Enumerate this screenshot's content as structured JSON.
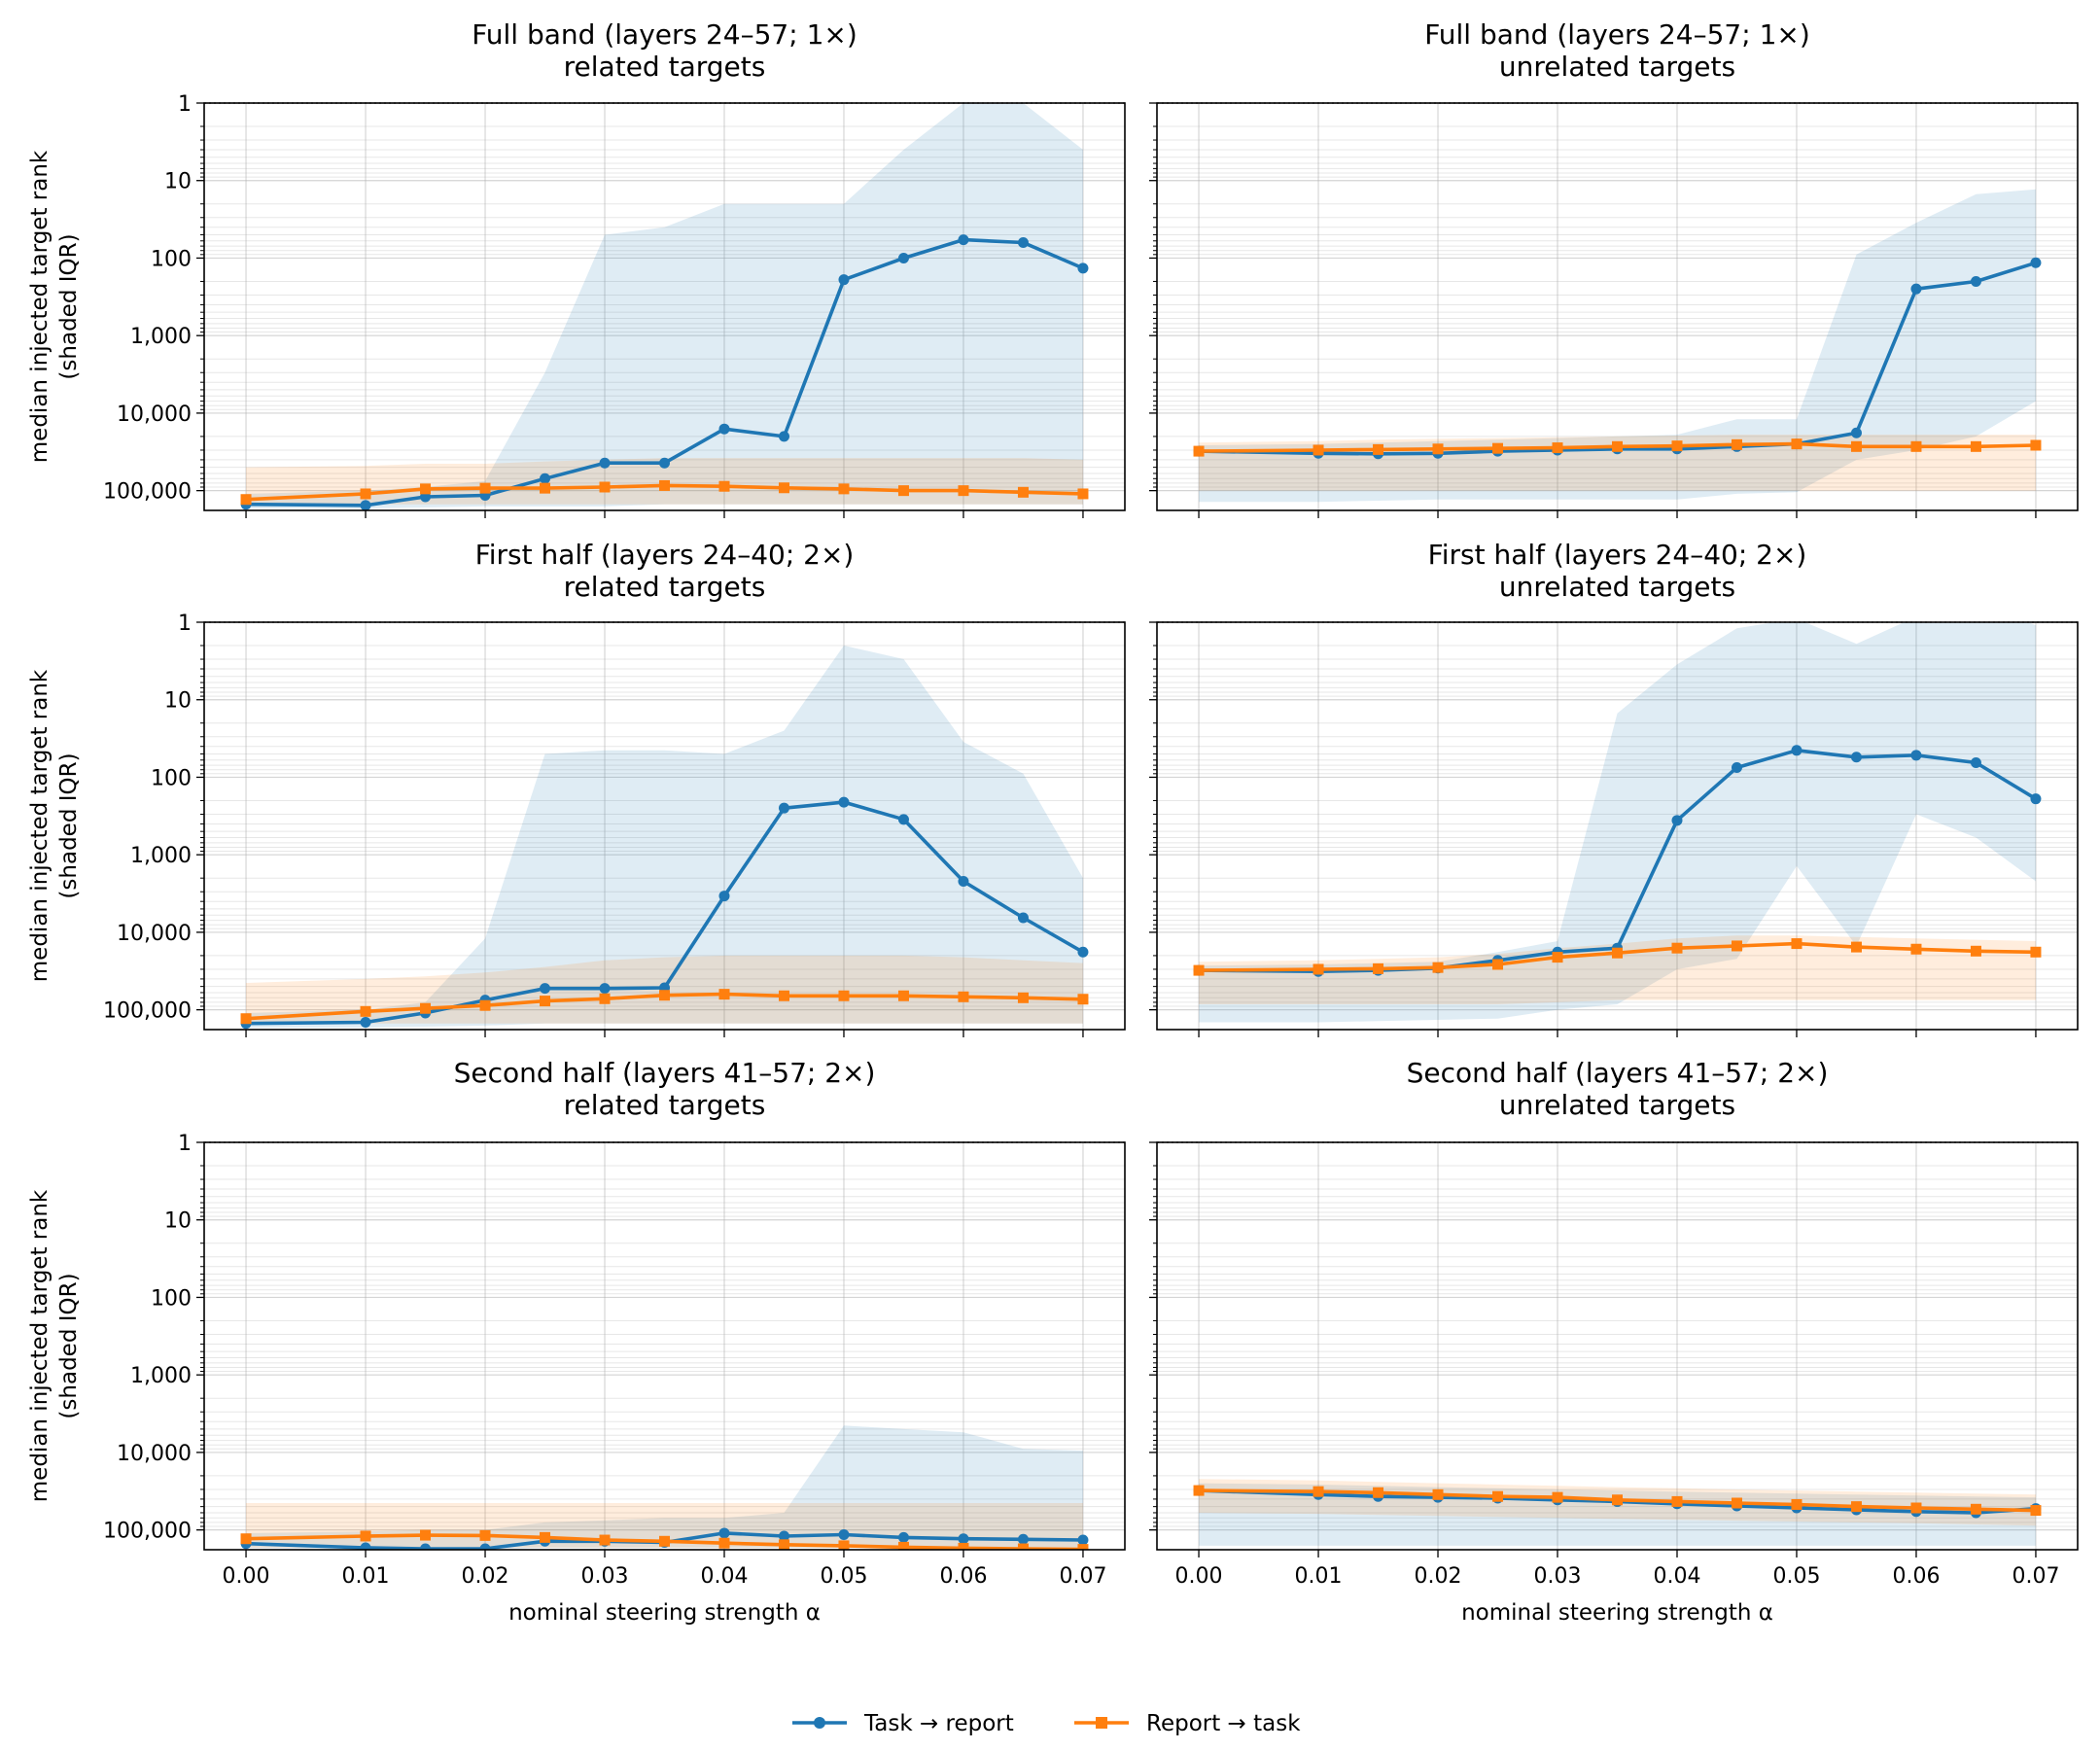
{
  "legend": [
    {
      "label": "Task → report",
      "color": "#1f77b4",
      "marker": "circle"
    },
    {
      "label": "Report → task",
      "color": "#ff7f0e",
      "marker": "square"
    }
  ],
  "chart_data": [
    {
      "type": "line",
      "title": "Full band (layers 24–57; 1×)",
      "subtitle": "related targets",
      "xlabel": "",
      "ylabel": "median injected target rank",
      "ylabel2": "(shaded IQR)",
      "yscale": "log",
      "yinverted": true,
      "ylim": [
        1,
        180000
      ],
      "xlim": [
        -0.0035,
        0.0735
      ],
      "x": [
        0.0,
        0.01,
        0.015,
        0.02,
        0.025,
        0.03,
        0.035,
        0.04,
        0.045,
        0.05,
        0.055,
        0.06,
        0.065,
        0.07
      ],
      "series": [
        {
          "name": "Task → report",
          "values": [
            150000,
            155000,
            120000,
            115000,
            70000,
            44000,
            44000,
            16000,
            20000,
            190,
            100,
            58,
            63,
            135
          ],
          "iqr_low": [
            170000,
            170000,
            165000,
            160000,
            160000,
            160000,
            150000,
            150000,
            150000,
            150000,
            150000,
            150000,
            150000,
            150000
          ],
          "iqr_high": [
            110000,
            100000,
            90000,
            75000,
            3000,
            50,
            40,
            20,
            20,
            20,
            4,
            1,
            1,
            4
          ]
        },
        {
          "name": "Report → task",
          "values": [
            130000,
            110000,
            95000,
            93000,
            93000,
            90000,
            86000,
            88000,
            92000,
            95000,
            100000,
            100000,
            105000,
            110000
          ],
          "iqr_low": [
            150000,
            150000,
            150000,
            150000,
            150000,
            150000,
            150000,
            150000,
            150000,
            150000,
            150000,
            150000,
            150000,
            150000
          ],
          "iqr_high": [
            50000,
            48000,
            45000,
            45000,
            42000,
            40000,
            38000,
            38000,
            38000,
            38000,
            38000,
            38000,
            38000,
            40000
          ]
        }
      ],
      "reference_line": 1,
      "grid": true
    },
    {
      "type": "line",
      "title": "Full band (layers 24–57; 1×)",
      "subtitle": "unrelated targets",
      "xlabel": "",
      "yscale": "log",
      "yinverted": true,
      "ylim": [
        1,
        180000
      ],
      "xlim": [
        -0.0035,
        0.0735
      ],
      "x": [
        0.0,
        0.01,
        0.015,
        0.02,
        0.025,
        0.03,
        0.035,
        0.04,
        0.045,
        0.05,
        0.055,
        0.06,
        0.065,
        0.07
      ],
      "series": [
        {
          "name": "Task → report",
          "values": [
            31000,
            33000,
            33500,
            33000,
            31000,
            30000,
            29000,
            29000,
            27000,
            25000,
            18000,
            250,
            200,
            115
          ],
          "iqr_low": [
            140000,
            140000,
            135000,
            130000,
            130000,
            130000,
            130000,
            130000,
            110000,
            105000,
            40000,
            30000,
            20000,
            7000
          ],
          "iqr_high": [
            26000,
            25000,
            24000,
            23000,
            22000,
            21000,
            20000,
            19000,
            12000,
            12000,
            90,
            35,
            15,
            13
          ]
        },
        {
          "name": "Report → task",
          "values": [
            31000,
            30000,
            29500,
            29000,
            28500,
            28000,
            27000,
            26500,
            25500,
            25000,
            27000,
            27000,
            27000,
            26000
          ],
          "iqr_low": [
            100000,
            100000,
            100000,
            100000,
            100000,
            100000,
            100000,
            100000,
            100000,
            100000,
            100000,
            100000,
            100000,
            100000
          ],
          "iqr_high": [
            24000,
            23000,
            22000,
            21500,
            21000,
            20500,
            20000,
            19500,
            19000,
            19000,
            19000,
            19000,
            19000,
            19000
          ]
        }
      ],
      "reference_line": 1,
      "grid": true
    },
    {
      "type": "line",
      "title": "First half (layers 24–40; 2×)",
      "subtitle": "related targets",
      "xlabel": "",
      "ylabel": "median injected target rank",
      "ylabel2": "(shaded IQR)",
      "yscale": "log",
      "yinverted": true,
      "ylim": [
        1,
        180000
      ],
      "xlim": [
        -0.0035,
        0.0735
      ],
      "x": [
        0.0,
        0.01,
        0.015,
        0.02,
        0.025,
        0.03,
        0.035,
        0.04,
        0.045,
        0.05,
        0.055,
        0.06,
        0.065,
        0.07
      ],
      "series": [
        {
          "name": "Task → report",
          "values": [
            150000,
            145000,
            110000,
            75000,
            53000,
            53000,
            52000,
            3400,
            250,
            210,
            350,
            2200,
            6500,
            18000
          ],
          "iqr_low": [
            170000,
            170000,
            165000,
            160000,
            150000,
            150000,
            150000,
            150000,
            150000,
            150000,
            150000,
            150000,
            150000,
            150000
          ],
          "iqr_high": [
            110000,
            100000,
            80000,
            12000,
            50,
            45,
            45,
            50,
            25,
            2,
            3,
            35,
            90,
            2000
          ]
        },
        {
          "name": "Report → task",
          "values": [
            130000,
            105000,
            96000,
            88000,
            77000,
            72000,
            65000,
            63000,
            66000,
            66000,
            66000,
            68000,
            70000,
            73000
          ],
          "iqr_low": [
            150000,
            150000,
            150000,
            150000,
            150000,
            150000,
            150000,
            150000,
            150000,
            150000,
            150000,
            150000,
            150000,
            150000
          ],
          "iqr_high": [
            45000,
            40000,
            37000,
            33000,
            28000,
            23000,
            21000,
            20000,
            20000,
            20000,
            20000,
            21000,
            23000,
            25000
          ]
        }
      ],
      "reference_line": 1,
      "grid": true
    },
    {
      "type": "line",
      "title": "First half (layers 24–40; 2×)",
      "subtitle": "unrelated targets",
      "xlabel": "",
      "yscale": "log",
      "yinverted": true,
      "ylim": [
        1,
        180000
      ],
      "xlim": [
        -0.0035,
        0.0735
      ],
      "x": [
        0.0,
        0.01,
        0.015,
        0.02,
        0.025,
        0.03,
        0.035,
        0.04,
        0.045,
        0.05,
        0.055,
        0.06,
        0.065,
        0.07
      ],
      "series": [
        {
          "name": "Task → report",
          "values": [
            31000,
            32000,
            31000,
            29000,
            23000,
            18000,
            16000,
            360,
            75,
            45,
            55,
            52,
            65,
            190
          ],
          "iqr_low": [
            145000,
            145000,
            140000,
            135000,
            130000,
            100000,
            85000,
            30000,
            22000,
            1400,
            15000,
            300,
            600,
            2200
          ],
          "iqr_high": [
            27000,
            26000,
            25000,
            24000,
            18000,
            13000,
            15,
            3.5,
            1.2,
            0.9,
            1.9,
            0.85,
            0.5,
            1.1
          ]
        },
        {
          "name": "Report → task",
          "values": [
            31000,
            30000,
            29500,
            28500,
            26000,
            21000,
            18500,
            16000,
            15000,
            14000,
            15500,
            16500,
            17500,
            18000
          ],
          "iqr_low": [
            85000,
            85000,
            85000,
            85000,
            85000,
            80000,
            75000,
            75000,
            75000,
            75000,
            75000,
            75000,
            75000,
            75000
          ],
          "iqr_high": [
            24000,
            23000,
            22000,
            21000,
            19000,
            16000,
            14000,
            12000,
            11000,
            11000,
            11500,
            12000,
            12500,
            13000
          ]
        }
      ],
      "reference_line": 1,
      "grid": true
    },
    {
      "type": "line",
      "title": "Second half (layers 41–57; 2×)",
      "subtitle": "related targets",
      "xlabel": "nominal steering strength α",
      "ylabel": "median injected target rank",
      "ylabel2": "(shaded IQR)",
      "yscale": "log",
      "yinverted": true,
      "ylim": [
        1,
        180000
      ],
      "xlim": [
        -0.0035,
        0.0735
      ],
      "x": [
        0.0,
        0.01,
        0.015,
        0.02,
        0.025,
        0.03,
        0.035,
        0.04,
        0.045,
        0.05,
        0.055,
        0.06,
        0.065,
        0.07
      ],
      "series": [
        {
          "name": "Task → report",
          "values": [
            150000,
            170000,
            175000,
            175000,
            140000,
            140000,
            145000,
            110000,
            120000,
            115000,
            125000,
            130000,
            132000,
            135000
          ],
          "iqr_low": [
            170000,
            175000,
            175000,
            175000,
            170000,
            170000,
            170000,
            170000,
            170000,
            170000,
            170000,
            170000,
            170000,
            170000
          ],
          "iqr_high": [
            110000,
            105000,
            100000,
            100000,
            80000,
            75000,
            70000,
            70000,
            60000,
            4500,
            5000,
            5500,
            9000,
            9500
          ]
        },
        {
          "name": "Report → task",
          "values": [
            130000,
            120000,
            117000,
            118000,
            125000,
            135000,
            140000,
            148000,
            155000,
            160000,
            167000,
            172000,
            175000,
            178000
          ],
          "iqr_low": [
            170000,
            170000,
            170000,
            170000,
            170000,
            170000,
            170000,
            170000,
            170000,
            170000,
            170000,
            170000,
            170000,
            170000
          ],
          "iqr_high": [
            45000,
            45000,
            45000,
            45000,
            45000,
            45000,
            45000,
            45000,
            45000,
            45000,
            45000,
            45000,
            45000,
            45000
          ]
        }
      ],
      "reference_line": 1,
      "grid": true
    },
    {
      "type": "line",
      "title": "Second half (layers 41–57; 2×)",
      "subtitle": "unrelated targets",
      "xlabel": "nominal steering strength α",
      "yscale": "log",
      "yinverted": true,
      "ylim": [
        1,
        180000
      ],
      "xlim": [
        -0.0035,
        0.0735
      ],
      "x": [
        0.0,
        0.01,
        0.015,
        0.02,
        0.025,
        0.03,
        0.035,
        0.04,
        0.045,
        0.05,
        0.055,
        0.06,
        0.065,
        0.07
      ],
      "series": [
        {
          "name": "Task → report",
          "values": [
            31000,
            35000,
            37000,
            38000,
            39000,
            41000,
            43000,
            46000,
            49000,
            52000,
            55000,
            58000,
            60000,
            53000
          ],
          "iqr_low": [
            160000,
            160000,
            160000,
            160000,
            160000,
            160000,
            160000,
            160000,
            160000,
            160000,
            160000,
            160000,
            160000,
            160000
          ],
          "iqr_high": [
            25000,
            26000,
            27000,
            28000,
            29000,
            30000,
            31000,
            32000,
            33000,
            34000,
            35000,
            36000,
            37000,
            38000
          ]
        },
        {
          "name": "Report → task",
          "values": [
            31000,
            32000,
            33000,
            35000,
            37000,
            38000,
            41000,
            43000,
            45000,
            47000,
            50000,
            52000,
            54000,
            56000
          ],
          "iqr_low": [
            60000,
            62000,
            64000,
            66000,
            68000,
            70000,
            72000,
            74000,
            76000,
            78000,
            80000,
            82000,
            85000,
            88000
          ],
          "iqr_high": [
            22000,
            23000,
            24000,
            25000,
            26000,
            27000,
            28000,
            29000,
            30000,
            31000,
            32000,
            33000,
            34000,
            35000
          ]
        }
      ],
      "reference_line": 1,
      "grid": true
    }
  ],
  "yticks": [
    {
      "value": 1,
      "label": "1"
    },
    {
      "value": 10,
      "label": "10"
    },
    {
      "value": 100,
      "label": "100"
    },
    {
      "value": 1000,
      "label": "1,000"
    },
    {
      "value": 10000,
      "label": "10,000"
    },
    {
      "value": 100000,
      "label": "100,000"
    }
  ],
  "xticks": [
    {
      "value": 0.0,
      "label": "0.00"
    },
    {
      "value": 0.01,
      "label": "0.01"
    },
    {
      "value": 0.02,
      "label": "0.02"
    },
    {
      "value": 0.03,
      "label": "0.03"
    },
    {
      "value": 0.04,
      "label": "0.04"
    },
    {
      "value": 0.05,
      "label": "0.05"
    },
    {
      "value": 0.06,
      "label": "0.06"
    },
    {
      "value": 0.07,
      "label": "0.07"
    }
  ]
}
